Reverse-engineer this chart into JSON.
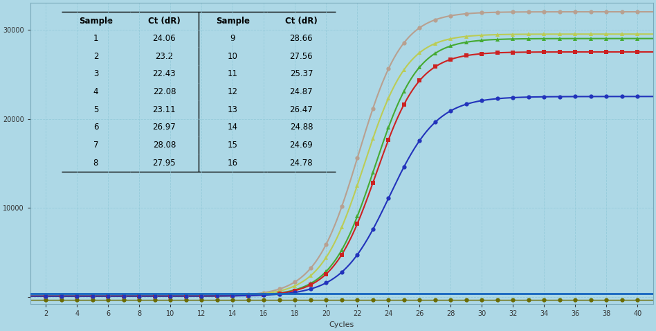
{
  "background_color": "#ADD8E6",
  "plot_bg_color": "#ADD8E6",
  "xlim": [
    1,
    41
  ],
  "ylim": [
    -800,
    33000
  ],
  "xticks": [
    2,
    4,
    6,
    8,
    10,
    12,
    14,
    16,
    18,
    20,
    22,
    24,
    26,
    28,
    30,
    32,
    34,
    36,
    38,
    40
  ],
  "ytick_vals": [
    0,
    10000,
    20000,
    30000
  ],
  "ytick_labels": [
    "",
    "10000",
    "20000",
    "30000"
  ],
  "xlabel": "Cycles",
  "threshold_y": 400,
  "threshold_color": "#1565C0",
  "curves": [
    {
      "label": "Sample 4",
      "ct": 22.08,
      "color": "#B8A090",
      "marker": "o",
      "plateau": 32000,
      "k": 0.72
    },
    {
      "label": "Sample 3",
      "ct": 22.43,
      "color": "#BBCC55",
      "marker": "^",
      "plateau": 29500,
      "k": 0.72
    },
    {
      "label": "Sample 5",
      "ct": 23.11,
      "color": "#44AA33",
      "marker": "^",
      "plateau": 29000,
      "k": 0.72
    },
    {
      "label": "Sample 2",
      "ct": 23.2,
      "color": "#CC2222",
      "marker": "s",
      "plateau": 27500,
      "k": 0.72
    },
    {
      "label": "Sample 1",
      "ct": 24.06,
      "color": "#2233BB",
      "marker": "o",
      "plateau": 22500,
      "k": 0.65
    }
  ],
  "table_data": {
    "col1": [
      "Sample",
      "1",
      "2",
      "3",
      "4",
      "5",
      "6",
      "7",
      "8"
    ],
    "col2": [
      "Ct (dR)",
      "24.06",
      "23.2",
      "22.43",
      "22.08",
      "23.11",
      "26.97",
      "28.08",
      "27.95"
    ],
    "col3": [
      "Sample",
      "9",
      "10",
      "11",
      "12",
      "13",
      "14",
      "15",
      "16"
    ],
    "col4": [
      "Ct (dR)",
      "28.66",
      "27.56",
      "25.37",
      "24.87",
      "26.47",
      "24.88",
      "24.69",
      "24.78"
    ]
  },
  "grid_color": "#90C8D8",
  "grid_alpha": 0.8,
  "baseline_color": "#6B6B00",
  "baseline_value": -300
}
